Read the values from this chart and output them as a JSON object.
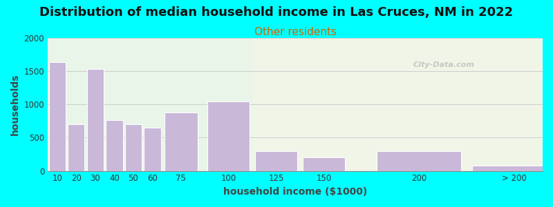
{
  "title": "Distribution of median household income in Las Cruces, NM in 2022",
  "subtitle": "Other residents",
  "xlabel": "household income ($1000)",
  "ylabel": "households",
  "background_color": "#00FFFF",
  "plot_bg_color_left": "#e8f5e8",
  "plot_bg_color_right": "#f0f5e8",
  "bar_color": "#c9b8d8",
  "bar_edge_color": "#ffffff",
  "bar_left_edges": [
    5,
    15,
    25,
    35,
    45,
    55,
    65,
    87.5,
    112.5,
    137.5,
    175,
    225
  ],
  "bar_widths": [
    10,
    10,
    10,
    10,
    10,
    10,
    20,
    25,
    25,
    25,
    50,
    50
  ],
  "values": [
    1640,
    700,
    1530,
    760,
    700,
    650,
    880,
    1050,
    300,
    200,
    295,
    80
  ],
  "xtick_positions": [
    10,
    20,
    30,
    40,
    50,
    60,
    75,
    100,
    125,
    150,
    200,
    250
  ],
  "xtick_labels": [
    "10",
    "20",
    "30",
    "40",
    "50",
    "60",
    "75",
    "100",
    "125",
    "150",
    "200",
    "> 200"
  ],
  "xlim": [
    5,
    265
  ],
  "ylim": [
    0,
    2000
  ],
  "yticks": [
    0,
    500,
    1000,
    1500,
    2000
  ],
  "split_x": 112.5,
  "title_fontsize": 13,
  "subtitle_fontsize": 11,
  "subtitle_color": "#cc6600",
  "axis_label_fontsize": 10,
  "watermark": "City-Data.com"
}
